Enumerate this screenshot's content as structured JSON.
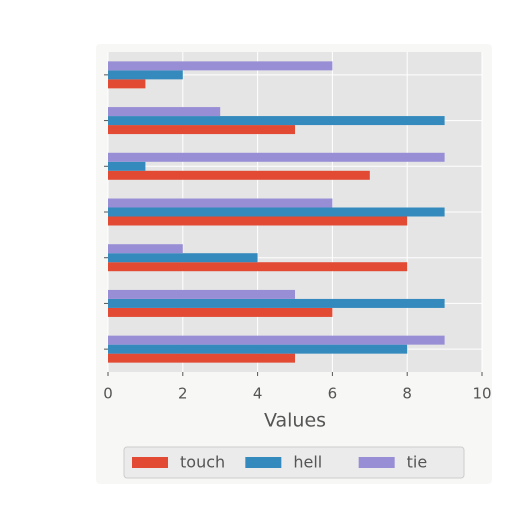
{
  "chart_data": {
    "type": "barh",
    "categories": [
      null,
      null,
      null,
      null,
      null,
      null,
      null
    ],
    "series": [
      {
        "name": "touch",
        "color": "#E24A33",
        "values": [
          5,
          6,
          8,
          8,
          7,
          5,
          1
        ]
      },
      {
        "name": "hell",
        "color": "#348ABD",
        "values": [
          8,
          9,
          4,
          9,
          1,
          9,
          2
        ]
      },
      {
        "name": "tie",
        "color": "#988ED5",
        "values": [
          9,
          5,
          2,
          6,
          9,
          3,
          6
        ]
      }
    ],
    "xlabel": "Values",
    "xlim": [
      0,
      10
    ],
    "xticks": [
      0,
      2,
      4,
      6,
      8,
      10
    ],
    "grid": true,
    "legend": "bottom"
  }
}
